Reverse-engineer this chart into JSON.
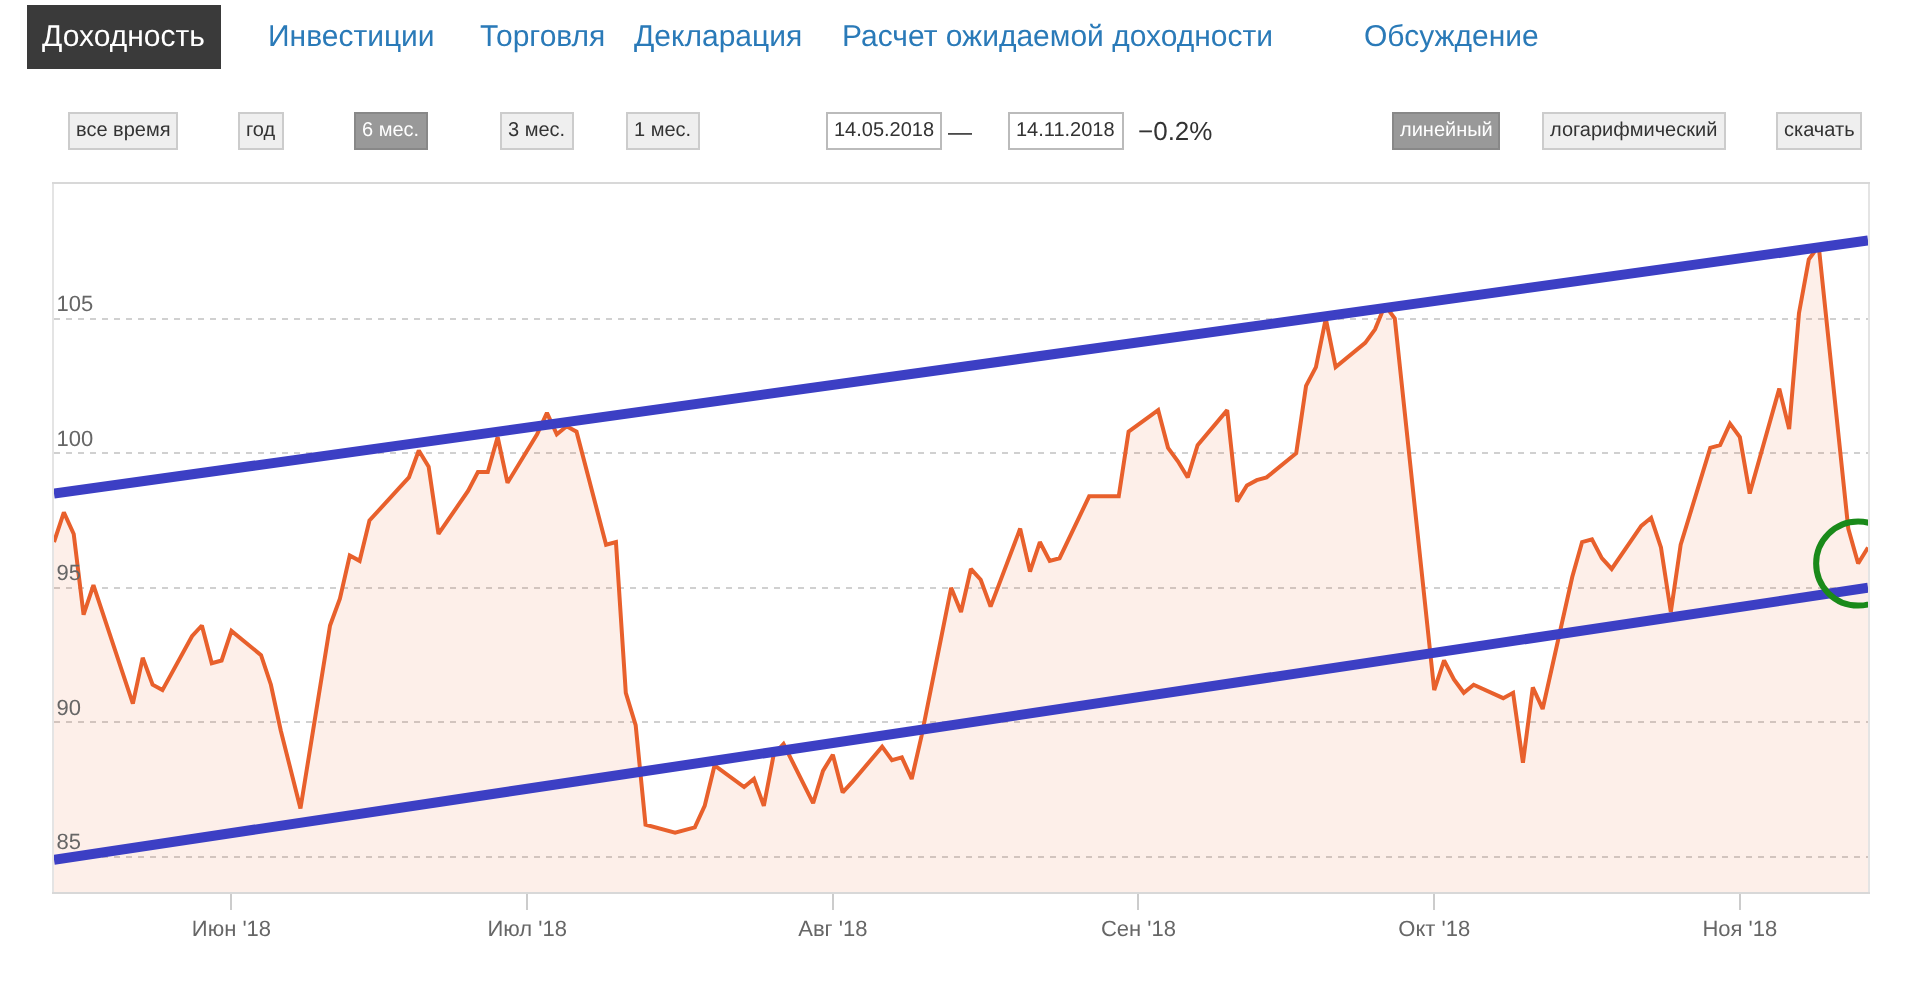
{
  "chart_data": {
    "type": "area",
    "xlim": [
      "2018-05-14",
      "2018-11-14"
    ],
    "xticks": [
      {
        "value": "2018-06-01",
        "label": "Июн '18"
      },
      {
        "value": "2018-07-01",
        "label": "Июл '18"
      },
      {
        "value": "2018-08-01",
        "label": "Авг '18"
      },
      {
        "value": "2018-09-01",
        "label": "Сен '18"
      },
      {
        "value": "2018-10-01",
        "label": "Окт '18"
      },
      {
        "value": "2018-11-01",
        "label": "Ноя '18"
      }
    ],
    "ylim": [
      83.7,
      110
    ],
    "yticks": [
      85,
      90,
      95,
      100,
      105
    ],
    "grid": "y",
    "marker": "none",
    "line_style": "solid",
    "annotations": [
      "Доходность",
      "Инвестиции",
      "Торговля",
      "Декларация",
      "Расчет ожидаемой доходности",
      "Обсуждение",
      "все время",
      "год",
      "6 мес.",
      "3 мес.",
      "1 мес.",
      "14.05.2018",
      "—",
      "14.11.2018",
      "−0.2%",
      "линейный",
      "логарифмический",
      "скачать"
    ],
    "series": [
      {
        "color": "#e8602c",
        "x": [
          "2018-05-14",
          "2018-05-15",
          "2018-05-16",
          "2018-05-17",
          "2018-05-18",
          "2018-05-22",
          "2018-05-23",
          "2018-05-24",
          "2018-05-25",
          "2018-05-28",
          "2018-05-29",
          "2018-05-30",
          "2018-05-31",
          "2018-06-01",
          "2018-06-04",
          "2018-06-05",
          "2018-06-06",
          "2018-06-08",
          "2018-06-11",
          "2018-06-12",
          "2018-06-13",
          "2018-06-14",
          "2018-06-15",
          "2018-06-18",
          "2018-06-19",
          "2018-06-20",
          "2018-06-21",
          "2018-06-22",
          "2018-06-25",
          "2018-06-26",
          "2018-06-27",
          "2018-06-28",
          "2018-06-29",
          "2018-07-02",
          "2018-07-03",
          "2018-07-04",
          "2018-07-05",
          "2018-07-06",
          "2018-07-09",
          "2018-07-10",
          "2018-07-11",
          "2018-07-12",
          "2018-07-13",
          "2018-07-16",
          "2018-07-18",
          "2018-07-19",
          "2018-07-20",
          "2018-07-23",
          "2018-07-24",
          "2018-07-25",
          "2018-07-26",
          "2018-07-27",
          "2018-07-30",
          "2018-07-31",
          "2018-08-01",
          "2018-08-02",
          "2018-08-03",
          "2018-08-06",
          "2018-08-07",
          "2018-08-08",
          "2018-08-09",
          "2018-08-10",
          "2018-08-13",
          "2018-08-14",
          "2018-08-15",
          "2018-08-16",
          "2018-08-17",
          "2018-08-20",
          "2018-08-21",
          "2018-08-22",
          "2018-08-23",
          "2018-08-24",
          "2018-08-27",
          "2018-08-28",
          "2018-08-29",
          "2018-08-30",
          "2018-08-31",
          "2018-09-03",
          "2018-09-04",
          "2018-09-05",
          "2018-09-06",
          "2018-09-07",
          "2018-09-10",
          "2018-09-11",
          "2018-09-12",
          "2018-09-13",
          "2018-09-14",
          "2018-09-17",
          "2018-09-18",
          "2018-09-19",
          "2018-09-20",
          "2018-09-21",
          "2018-09-24",
          "2018-09-25",
          "2018-09-26",
          "2018-09-27",
          "2018-10-01",
          "2018-10-02",
          "2018-10-03",
          "2018-10-04",
          "2018-10-05",
          "2018-10-08",
          "2018-10-09",
          "2018-10-10",
          "2018-10-11",
          "2018-10-12",
          "2018-10-15",
          "2018-10-16",
          "2018-10-17",
          "2018-10-18",
          "2018-10-19",
          "2018-10-22",
          "2018-10-23",
          "2018-10-24",
          "2018-10-25",
          "2018-10-26",
          "2018-10-29",
          "2018-10-30",
          "2018-10-31",
          "2018-11-01",
          "2018-11-02",
          "2018-11-05",
          "2018-11-06",
          "2018-11-07",
          "2018-11-08",
          "2018-11-09",
          "2018-11-12",
          "2018-11-13",
          "2018-11-14"
        ],
        "values": [
          96.7,
          97.8,
          97.0,
          94.0,
          95.1,
          90.7,
          92.4,
          91.4,
          91.2,
          93.2,
          93.6,
          92.2,
          92.3,
          93.4,
          92.5,
          91.4,
          89.7,
          86.8,
          93.6,
          94.6,
          96.2,
          96.0,
          97.5,
          98.7,
          99.1,
          100.1,
          99.5,
          97.0,
          98.6,
          99.3,
          99.3,
          100.6,
          98.9,
          100.7,
          101.5,
          100.7,
          101.0,
          100.8,
          96.6,
          96.7,
          91.1,
          89.9,
          86.2,
          85.9,
          86.1,
          86.9,
          88.4,
          87.6,
          87.9,
          86.9,
          88.8,
          89.2,
          87.0,
          88.2,
          88.8,
          87.4,
          87.8,
          89.1,
          88.6,
          88.7,
          87.9,
          89.5,
          95.0,
          94.1,
          95.7,
          95.3,
          94.3,
          97.2,
          95.6,
          96.7,
          96.0,
          96.1,
          98.4,
          98.4,
          98.4,
          98.4,
          100.8,
          101.6,
          100.2,
          99.7,
          99.1,
          100.3,
          101.6,
          98.2,
          98.8,
          99.0,
          99.1,
          100.0,
          102.5,
          103.2,
          105.0,
          103.2,
          104.1,
          104.6,
          105.5,
          105.0,
          91.2,
          92.3,
          91.6,
          91.1,
          91.4,
          90.9,
          91.1,
          88.5,
          91.3,
          90.5,
          95.4,
          96.7,
          96.8,
          96.1,
          95.7,
          97.3,
          97.6,
          96.5,
          94.1,
          96.6,
          100.2,
          100.3,
          101.1,
          100.6,
          98.5,
          102.4,
          100.9,
          105.2,
          107.2,
          107.7,
          97.2,
          95.9,
          96.5
        ]
      },
      {
        "type": "line",
        "color": "#3c3fc4",
        "x": [
          "2018-05-14",
          "2018-11-14"
        ],
        "values": [
          98.5,
          107.9
        ]
      },
      {
        "type": "line",
        "color": "#3c3fc4",
        "x": [
          "2018-05-14",
          "2018-11-14"
        ],
        "values": [
          84.9,
          95.0
        ]
      }
    ]
  }
}
